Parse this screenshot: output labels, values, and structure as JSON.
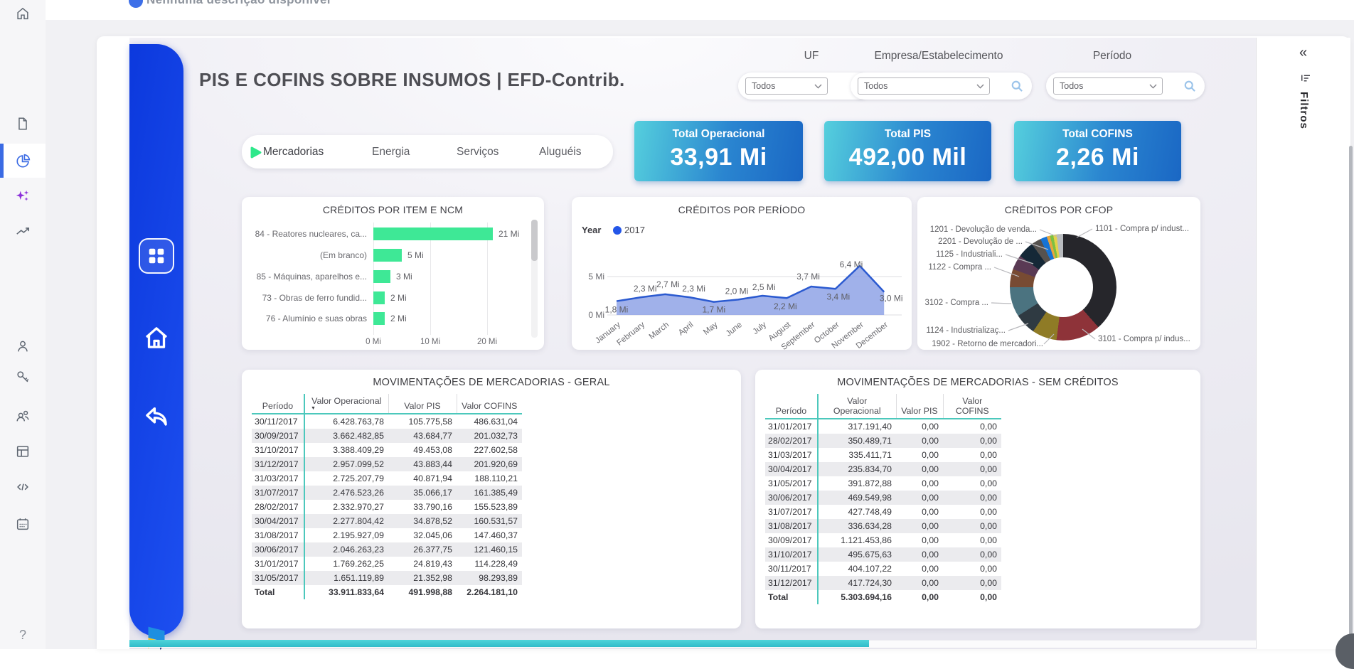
{
  "top_bar": {
    "description": "Nenhuma descrição disponível"
  },
  "sidebar": {
    "icons": [
      "home",
      "document",
      "pie-chart",
      "sparkles",
      "trending-up",
      "person",
      "key",
      "people",
      "layout",
      "code",
      "calendar",
      "help"
    ],
    "active_icon": "pie-chart",
    "help_glyph": "?"
  },
  "report": {
    "title": "PIS E COFINS SOBRE INSUMOS | EFD-Contrib.",
    "filters": [
      {
        "label": "UF",
        "value": "Todos"
      },
      {
        "label": "Empresa/Estabelecimento",
        "value": "Todos"
      },
      {
        "label": "Período",
        "value": "Todos"
      }
    ],
    "tabs": [
      {
        "label": "Mercadorias",
        "active": true
      },
      {
        "label": "Energia",
        "active": false
      },
      {
        "label": "Serviços",
        "active": false
      },
      {
        "label": "Aluguéis",
        "active": false
      }
    ],
    "kpis": [
      {
        "label": "Total Operacional",
        "value": "33,91 Mi"
      },
      {
        "label": "Total PIS",
        "value": "492,00 Mil"
      },
      {
        "label": "Total COFINS",
        "value": "2,26 Mi"
      }
    ],
    "filters_pane": {
      "label": "Filtros",
      "collapse_glyph": "«"
    }
  },
  "colors": {
    "nav_blue": "#0c39dd",
    "kpi_gradient_start": "#55cfdd",
    "kpi_gradient_end": "#1a67c4",
    "bar_green": "#3ee896",
    "line_blue": "#2b5ad0",
    "area_fill": "#8fa3e6",
    "table_accent": "#4cc8bc",
    "scrollbar_teal": "#41c9d2",
    "tab_marker_green": "#2ee88b"
  },
  "chart_data": [
    {
      "id": "creditos_por_item_ncm",
      "type": "bar",
      "orientation": "horizontal",
      "title": "CRÉDITOS POR ITEM E NCM",
      "categories": [
        "84 - Reatores nucleares, ca...",
        "(Em branco)",
        "85 - Máquinas, aparelhos e...",
        "73 - Obras de ferro fundid...",
        "76 - Alumínio e suas obras"
      ],
      "values": [
        21,
        5,
        3,
        2,
        2
      ],
      "value_labels": [
        "21 Mi",
        "5 Mi",
        "3 Mi",
        "2 Mi",
        "2 Mi"
      ],
      "x_ticks": [
        "0 Mi",
        "10 Mi",
        "20 Mi"
      ],
      "xlim": [
        0,
        25
      ],
      "grid": true
    },
    {
      "id": "creditos_por_periodo",
      "type": "area",
      "title": "CRÉDITOS POR PERÍODO",
      "legend": {
        "label": "Year",
        "series": "2017",
        "position": "top-left"
      },
      "x": [
        "January",
        "February",
        "March",
        "April",
        "May",
        "June",
        "July",
        "August",
        "September",
        "October",
        "November",
        "December"
      ],
      "values": [
        1.8,
        2.3,
        2.7,
        2.3,
        1.7,
        2.0,
        2.5,
        2.2,
        3.7,
        3.4,
        6.4,
        3.0
      ],
      "point_labels": [
        "1,8 Mi",
        "2,3 Mi",
        "2,7 Mi",
        "2,3 Mi",
        "1,7 Mi",
        "2,0 Mi",
        "2,5 Mi",
        "2,2 Mi",
        "3,7 Mi",
        "3,4 Mi",
        "6,4 Mi",
        "3,0 Mi"
      ],
      "y_ticks": [
        "0 Mi",
        "5 Mi"
      ],
      "ylim": [
        0,
        6.5
      ],
      "grid": true
    },
    {
      "id": "creditos_por_cfop",
      "type": "pie",
      "title": "CRÉDITOS POR CFOP",
      "segments": [
        {
          "label": "1101 - Compra p/ indust...",
          "pct": 38.5,
          "color": "#26262b",
          "side": "right",
          "slot": 0
        },
        {
          "label": "3101 - Compra p/ indus...",
          "pct": 13.5,
          "color": "#8e3339",
          "side": "right",
          "slot": 1
        },
        {
          "label": "1902 - Retorno de mercadori...",
          "pct": 7.5,
          "color": "#8f7b26",
          "side": "left",
          "slot": 6
        },
        {
          "label": "1124 - Industrializaç...",
          "pct": 6.5,
          "color": "#2f3a42",
          "side": "left",
          "slot": 5
        },
        {
          "label": "3102 - Compra ...",
          "pct": 9,
          "color": "#4b7380",
          "side": "left",
          "slot": 4
        },
        {
          "label": "1122 - Compra ...",
          "pct": 5.5,
          "color": "#784b33",
          "side": "left",
          "slot": 3
        },
        {
          "label": "1125 - Industriali...",
          "pct": 4.5,
          "color": "#5a3a54",
          "side": "left",
          "slot": 2
        },
        {
          "label": "2201 - Devolução de ...",
          "pct": 5,
          "color": "#152837",
          "side": "left",
          "slot": 1
        },
        {
          "label": "1201 - Devolução de venda...",
          "pct": 3,
          "color": "#56524f",
          "side": "left",
          "slot": 0
        },
        {
          "label": null,
          "pct": 2,
          "color": "#1673d4"
        },
        {
          "label": null,
          "pct": 1,
          "color": "#e8a63e"
        },
        {
          "label": null,
          "pct": 1,
          "color": "#7cc043"
        },
        {
          "label": null,
          "pct": 1,
          "color": "#e5d24a"
        },
        {
          "label": null,
          "pct": 2,
          "color": "#b9bcc0"
        }
      ]
    },
    {
      "id": "mov_geral",
      "type": "table",
      "title": "MOVIMENTAÇÕES DE MERCADORIAS - GERAL",
      "columns": [
        "Período",
        "Valor Operacional",
        "Valor PIS",
        "Valor COFINS"
      ],
      "sort_column_index": 1,
      "rows": [
        [
          "30/11/2017",
          "6.428.763,78",
          "105.775,58",
          "486.631,04"
        ],
        [
          "30/09/2017",
          "3.662.482,85",
          "43.684,77",
          "201.032,73"
        ],
        [
          "31/10/2017",
          "3.388.409,29",
          "49.453,08",
          "227.602,58"
        ],
        [
          "31/12/2017",
          "2.957.099,52",
          "43.883,44",
          "201.920,69"
        ],
        [
          "31/03/2017",
          "2.725.207,79",
          "40.871,94",
          "188.110,21"
        ],
        [
          "31/07/2017",
          "2.476.523,26",
          "35.066,17",
          "161.385,49"
        ],
        [
          "28/02/2017",
          "2.332.970,27",
          "33.790,16",
          "155.523,89"
        ],
        [
          "30/04/2017",
          "2.277.804,42",
          "34.878,52",
          "160.531,57"
        ],
        [
          "31/08/2017",
          "2.195.927,09",
          "32.045,06",
          "147.460,37"
        ],
        [
          "30/06/2017",
          "2.046.263,23",
          "26.377,75",
          "121.460,15"
        ],
        [
          "31/01/2017",
          "1.769.262,25",
          "24.819,43",
          "114.228,49"
        ],
        [
          "31/05/2017",
          "1.651.119,89",
          "21.352,98",
          "98.293,89"
        ]
      ],
      "total": [
        "Total",
        "33.911.833,64",
        "491.998,88",
        "2.264.181,10"
      ]
    },
    {
      "id": "mov_sem_creditos",
      "type": "table",
      "title": "MOVIMENTAÇÕES DE MERCADORIAS - SEM CRÉDITOS",
      "columns": [
        "Período",
        "Valor Operacional",
        "Valor PIS",
        "Valor COFINS"
      ],
      "sort_column_index": -1,
      "rows": [
        [
          "31/01/2017",
          "317.191,40",
          "0,00",
          "0,00"
        ],
        [
          "28/02/2017",
          "350.489,71",
          "0,00",
          "0,00"
        ],
        [
          "31/03/2017",
          "335.411,71",
          "0,00",
          "0,00"
        ],
        [
          "30/04/2017",
          "235.834,70",
          "0,00",
          "0,00"
        ],
        [
          "31/05/2017",
          "391.872,88",
          "0,00",
          "0,00"
        ],
        [
          "30/06/2017",
          "469.549,98",
          "0,00",
          "0,00"
        ],
        [
          "31/07/2017",
          "427.748,49",
          "0,00",
          "0,00"
        ],
        [
          "31/08/2017",
          "336.634,28",
          "0,00",
          "0,00"
        ],
        [
          "30/09/2017",
          "1.121.453,86",
          "0,00",
          "0,00"
        ],
        [
          "31/10/2017",
          "495.675,63",
          "0,00",
          "0,00"
        ],
        [
          "30/11/2017",
          "404.107,22",
          "0,00",
          "0,00"
        ],
        [
          "31/12/2017",
          "417.724,30",
          "0,00",
          "0,00"
        ]
      ],
      "total": [
        "Total",
        "5.303.694,16",
        "0,00",
        "0,00"
      ]
    }
  ]
}
